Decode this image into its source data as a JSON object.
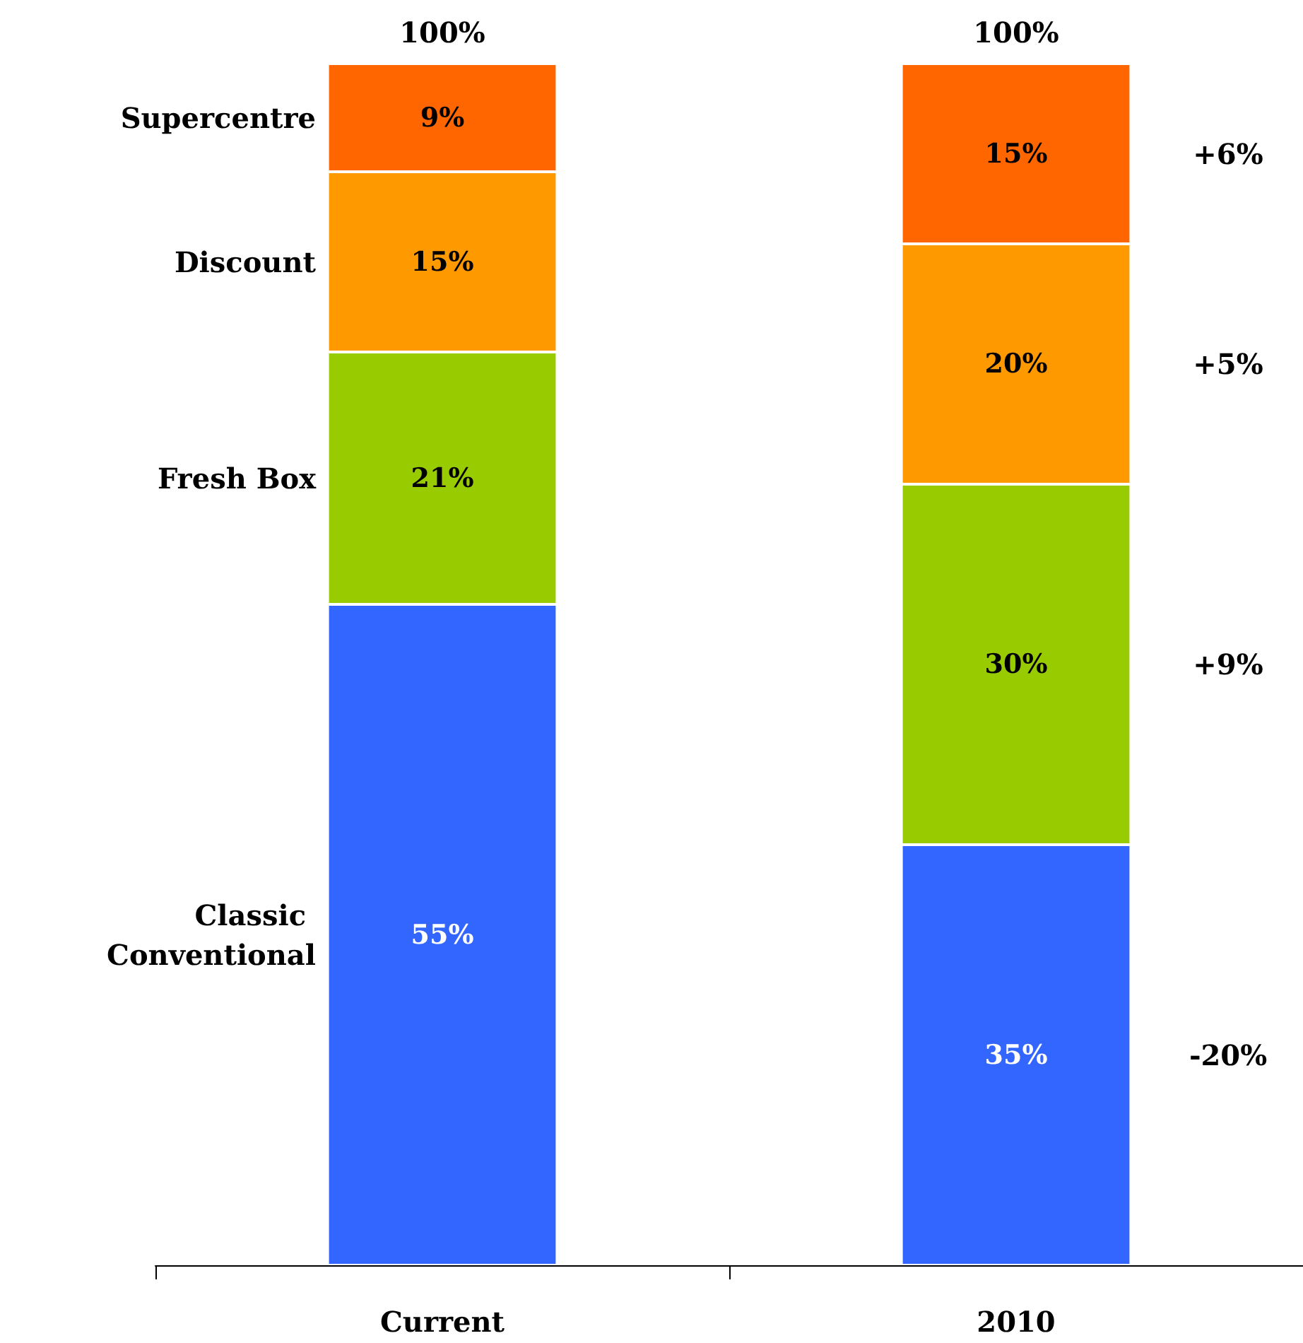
{
  "chart_data": {
    "type": "bar",
    "stacked": true,
    "categories": [
      "Current",
      "2010"
    ],
    "series": [
      {
        "name": "Classic Conventional",
        "color": "#3366ff",
        "values": [
          55,
          35
        ],
        "value_labels": [
          "55%",
          "35%"
        ]
      },
      {
        "name": "Fresh Box",
        "color": "#99cc00",
        "values": [
          21,
          30
        ],
        "value_labels": [
          "21%",
          "30%"
        ]
      },
      {
        "name": "Discount",
        "color": "#ff9900",
        "values": [
          15,
          20
        ],
        "value_labels": [
          "15%",
          "20%"
        ]
      },
      {
        "name": "Supercentre",
        "color": "#ff6600",
        "values": [
          9,
          15
        ],
        "value_labels": [
          "9%",
          "15%"
        ]
      }
    ],
    "totals": [
      "100%",
      "100%"
    ],
    "annotations": [
      "+6%",
      "+5%",
      "+9%",
      "-20%"
    ],
    "grid": false,
    "legend": "left",
    "tick_labels": "x"
  }
}
